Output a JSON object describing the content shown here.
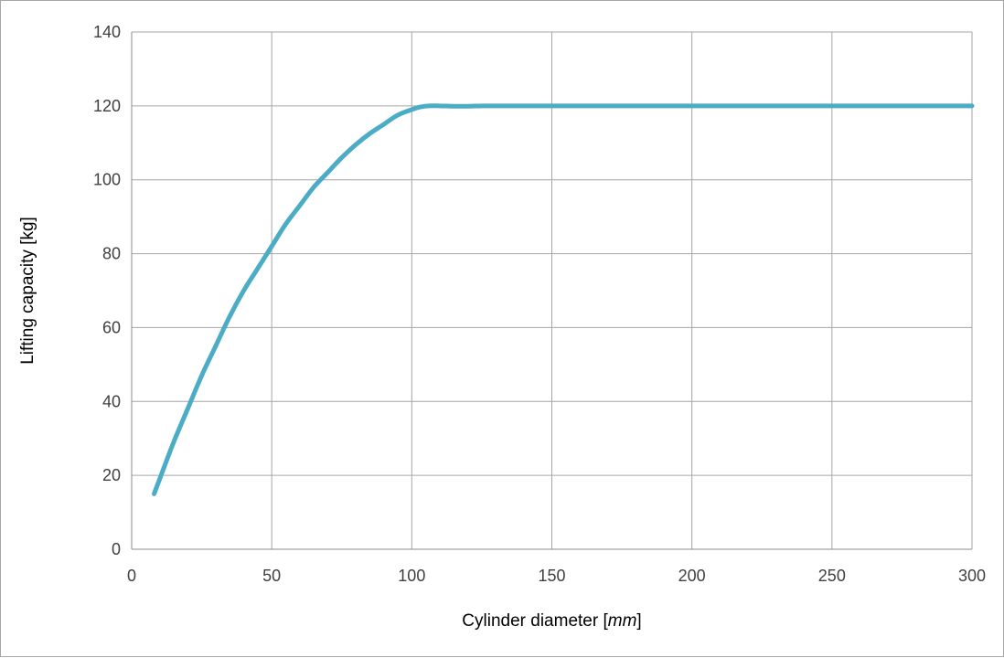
{
  "chart_data": {
    "type": "line",
    "title": "",
    "xlabel": "Cylinder diameter [mm]",
    "xlabel_parts": {
      "prefix": "Cylinder diameter [",
      "unit": "mm",
      "suffix": "]"
    },
    "ylabel": "Lifting capacity [kg]",
    "xlim": [
      0,
      300
    ],
    "ylim": [
      0,
      140
    ],
    "x_ticks": [
      0,
      50,
      100,
      150,
      200,
      250,
      300
    ],
    "y_ticks": [
      0,
      20,
      40,
      60,
      80,
      100,
      120,
      140
    ],
    "grid": true,
    "legend": "none",
    "series": [
      {
        "color": "#4bacc6",
        "x": [
          8,
          10,
          15,
          20,
          25,
          30,
          35,
          40,
          45,
          50,
          55,
          60,
          65,
          70,
          75,
          80,
          85,
          90,
          95,
          100,
          103,
          106,
          110,
          115,
          120,
          125,
          130,
          140,
          150,
          175,
          200,
          225,
          250,
          275,
          300
        ],
        "y": [
          15,
          19,
          29,
          38,
          47,
          55,
          63,
          70,
          76,
          82,
          88,
          93,
          98,
          102,
          106,
          109.5,
          112.5,
          115,
          117.5,
          119,
          119.7,
          120,
          120,
          119.9,
          119.9,
          120,
          120,
          120,
          120,
          120,
          120,
          120,
          120,
          120,
          120
        ]
      }
    ]
  }
}
